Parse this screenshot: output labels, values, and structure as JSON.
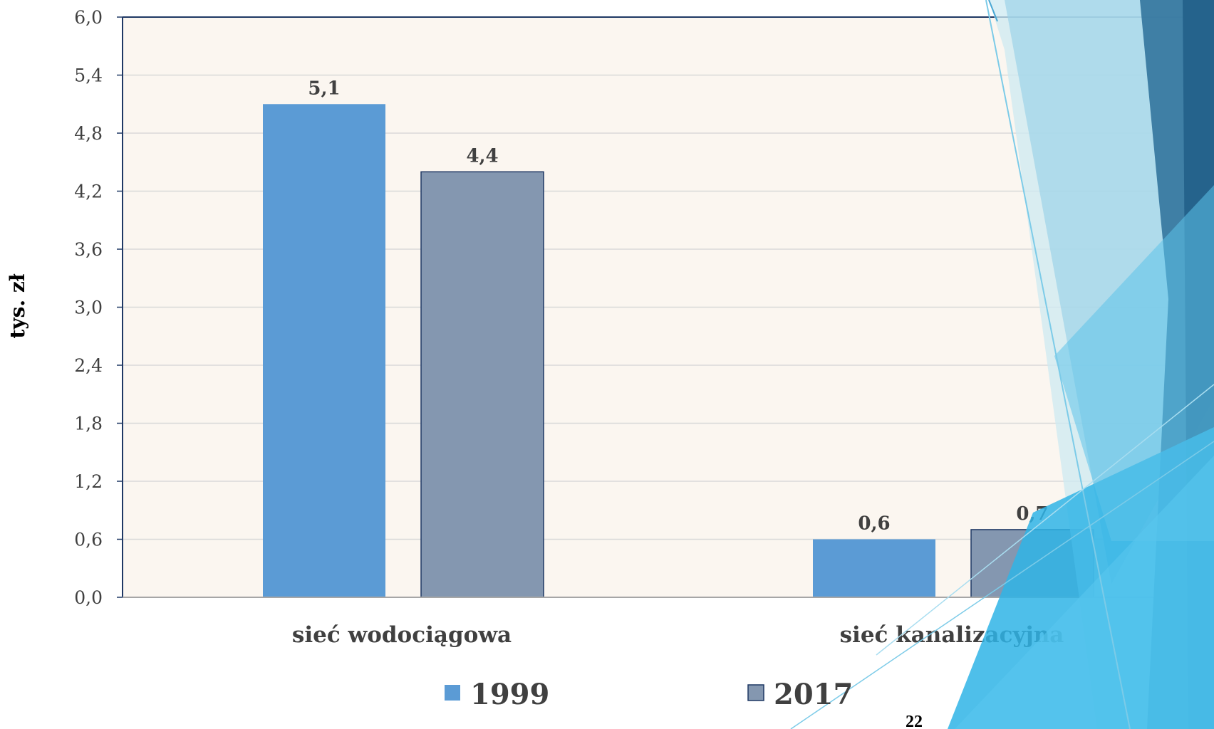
{
  "slide": {
    "page_number": "22"
  },
  "chart_data": {
    "type": "bar",
    "categories": [
      "sieć wodociągowa",
      "sieć kanalizacyjna"
    ],
    "series": [
      {
        "name": "1999",
        "values": [
          5.1,
          0.6
        ],
        "data_labels": [
          "5,1",
          "0,6"
        ],
        "color": "#5B9BD5"
      },
      {
        "name": "2017",
        "values": [
          4.4,
          0.7
        ],
        "data_labels": [
          "4,4",
          "0,7"
        ],
        "color": "#8497B0"
      }
    ],
    "ylabel": "tys. zł",
    "ylim": [
      0,
      6.0
    ],
    "yticks": [
      0.0,
      0.6,
      1.2,
      1.8,
      2.4,
      3.0,
      3.6,
      4.2,
      4.8,
      5.4,
      6.0
    ],
    "ytick_labels": [
      "0,0",
      "0,6",
      "1,2",
      "1,8",
      "2,4",
      "3,0",
      "3,6",
      "4,2",
      "4,8",
      "5,4",
      "6,0"
    ],
    "grid": true,
    "legend_position": "bottom",
    "plot_background": "#FBF6F0"
  }
}
